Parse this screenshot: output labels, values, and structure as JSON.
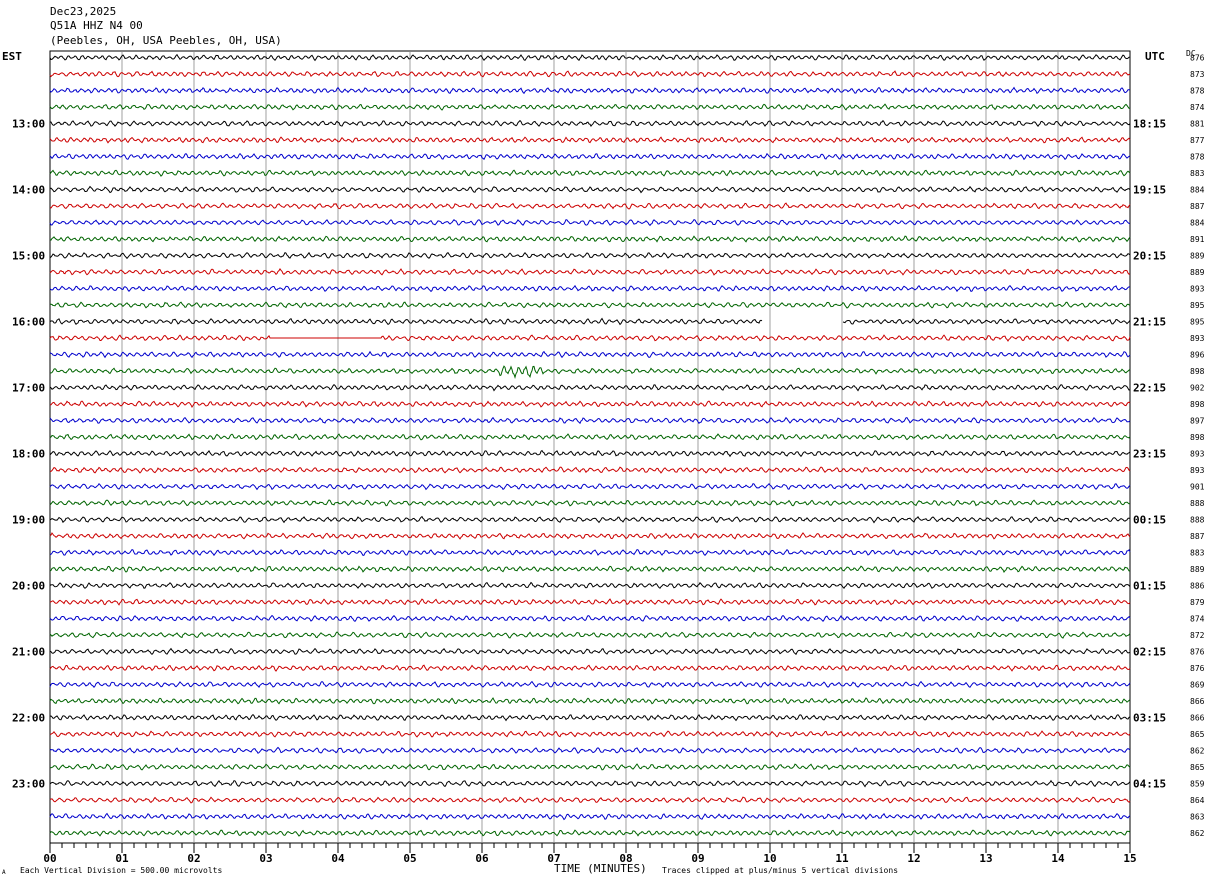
{
  "header": {
    "date": "Dec23,2025",
    "station": "Q51A HHZ N4 00",
    "location": "(Peebles, OH, USA Peebles, OH, USA)"
  },
  "left_tz": "EST",
  "right_tz": "UTC",
  "dc_label": "DC",
  "footer": {
    "scale_note": "Each Vertical Division =  500.00 microvolts",
    "xlabel": "TIME (MINUTES)",
    "clip_note": "Traces clipped at plus/minus 5 vertical divisions",
    "corner_mark": "A"
  },
  "chart_data": {
    "type": "line",
    "x_ticks": [
      "00",
      "01",
      "02",
      "03",
      "04",
      "05",
      "06",
      "07",
      "08",
      "09",
      "10",
      "11",
      "12",
      "13",
      "14",
      "15"
    ],
    "xlim": [
      0,
      15
    ],
    "trace_colors": [
      "#000000",
      "#cc0000",
      "#0000cc",
      "#006400"
    ],
    "left_labels": [
      {
        "row": 4,
        "text": "13:00"
      },
      {
        "row": 8,
        "text": "14:00"
      },
      {
        "row": 12,
        "text": "15:00"
      },
      {
        "row": 16,
        "text": "16:00"
      },
      {
        "row": 20,
        "text": "17:00"
      },
      {
        "row": 24,
        "text": "18:00"
      },
      {
        "row": 28,
        "text": "19:00"
      },
      {
        "row": 32,
        "text": "20:00"
      },
      {
        "row": 36,
        "text": "21:00"
      },
      {
        "row": 40,
        "text": "22:00"
      },
      {
        "row": 44,
        "text": "23:00"
      }
    ],
    "right_labels": [
      {
        "row": 4,
        "text": "18:15"
      },
      {
        "row": 8,
        "text": "19:15"
      },
      {
        "row": 12,
        "text": "20:15"
      },
      {
        "row": 16,
        "text": "21:15"
      },
      {
        "row": 20,
        "text": "22:15"
      },
      {
        "row": 24,
        "text": "23:15"
      },
      {
        "row": 28,
        "text": "00:15"
      },
      {
        "row": 32,
        "text": "01:15"
      },
      {
        "row": 36,
        "text": "02:15"
      },
      {
        "row": 40,
        "text": "03:15"
      },
      {
        "row": 44,
        "text": "04:15"
      }
    ],
    "dc_values": [
      "876",
      "873",
      "878",
      "874",
      "881",
      "877",
      "878",
      "883",
      "884",
      "887",
      "884",
      "891",
      "889",
      "889",
      "893",
      "895",
      "895",
      "893",
      "896",
      "898",
      "902",
      "898",
      "897",
      "898",
      "893",
      "893",
      "901",
      "888",
      "888",
      "887",
      "883",
      "889",
      "886",
      "879",
      "874",
      "872",
      "876",
      "876",
      "869",
      "866",
      "866",
      "865",
      "862",
      "865",
      "859",
      "864",
      "863",
      "862"
    ],
    "events": [
      {
        "row": 16,
        "type": "gap",
        "start_min": 9.9,
        "end_min": 11.0
      },
      {
        "row": 17,
        "type": "flat",
        "start_min": 3.05,
        "end_min": 4.6
      },
      {
        "row": 19,
        "type": "burst",
        "start_min": 6.25,
        "end_min": 6.85
      }
    ]
  }
}
